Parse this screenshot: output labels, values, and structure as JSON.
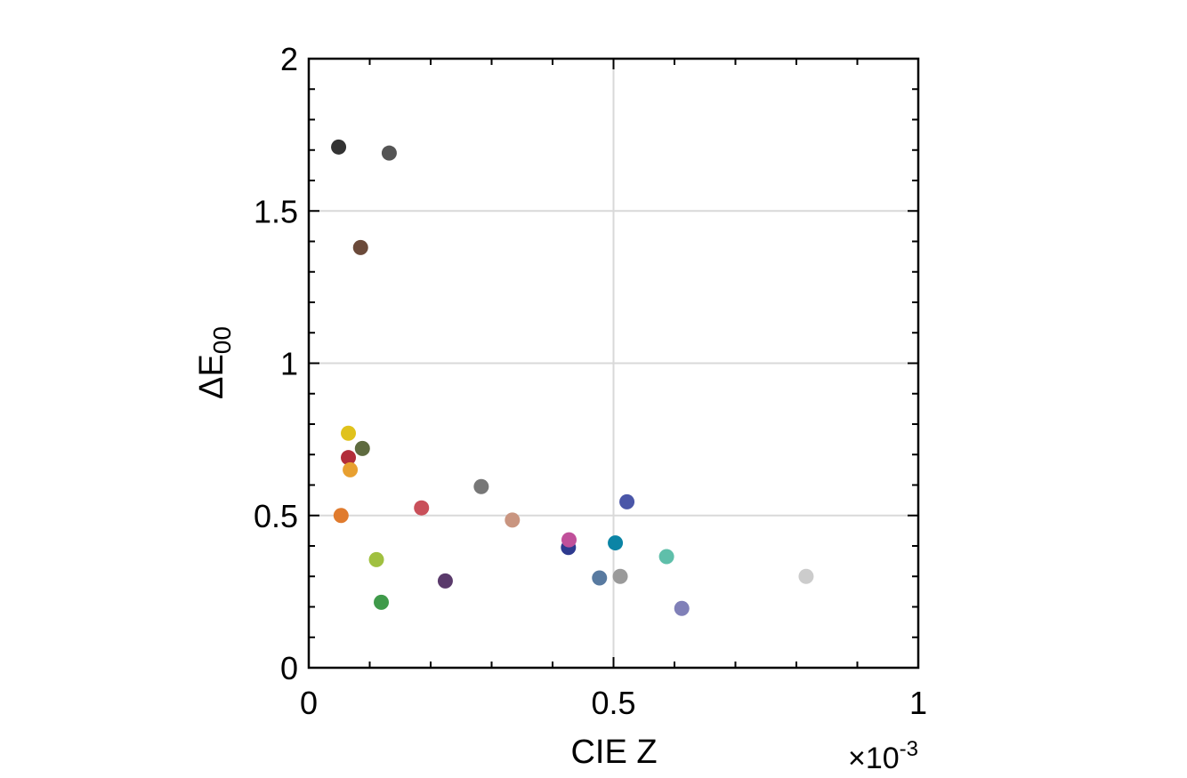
{
  "chart_data": {
    "type": "scatter",
    "xlabel": "CIE Z",
    "ylabel": "ΔE",
    "ylabel_subscript": "00",
    "x_multiplier": "×10",
    "x_multiplier_exponent": "-3",
    "xlim": [
      0,
      1
    ],
    "ylim": [
      0,
      2
    ],
    "x_ticks": [
      0,
      0.5,
      1
    ],
    "x_tick_labels": [
      "0",
      "0.5",
      "1"
    ],
    "y_ticks": [
      0,
      0.5,
      1,
      1.5,
      2
    ],
    "y_tick_labels": [
      "0",
      "0.5",
      "1",
      "1.5",
      "2"
    ],
    "grid": true,
    "legend": "none",
    "points": [
      {
        "x": 0.049,
        "y": 1.71,
        "color": "#333333"
      },
      {
        "x": 0.132,
        "y": 1.69,
        "color": "#555555"
      },
      {
        "x": 0.085,
        "y": 1.38,
        "color": "#6b4a3a"
      },
      {
        "x": 0.065,
        "y": 0.77,
        "color": "#e0c21c"
      },
      {
        "x": 0.088,
        "y": 0.72,
        "color": "#5e6b3f"
      },
      {
        "x": 0.065,
        "y": 0.69,
        "color": "#b22d3a"
      },
      {
        "x": 0.068,
        "y": 0.65,
        "color": "#e8a030"
      },
      {
        "x": 0.053,
        "y": 0.5,
        "color": "#e07b2e"
      },
      {
        "x": 0.111,
        "y": 0.355,
        "color": "#a0c040"
      },
      {
        "x": 0.119,
        "y": 0.215,
        "color": "#3f9a4a"
      },
      {
        "x": 0.185,
        "y": 0.525,
        "color": "#c9505a"
      },
      {
        "x": 0.224,
        "y": 0.285,
        "color": "#5a3a6b"
      },
      {
        "x": 0.283,
        "y": 0.595,
        "color": "#777777"
      },
      {
        "x": 0.334,
        "y": 0.485,
        "color": "#c99580"
      },
      {
        "x": 0.426,
        "y": 0.395,
        "color": "#2e3a8f"
      },
      {
        "x": 0.427,
        "y": 0.42,
        "color": "#c0509a"
      },
      {
        "x": 0.477,
        "y": 0.295,
        "color": "#587aa0"
      },
      {
        "x": 0.503,
        "y": 0.41,
        "color": "#0b84a5"
      },
      {
        "x": 0.511,
        "y": 0.3,
        "color": "#9a9a9a"
      },
      {
        "x": 0.522,
        "y": 0.545,
        "color": "#4a56a8"
      },
      {
        "x": 0.587,
        "y": 0.365,
        "color": "#5fbfaa"
      },
      {
        "x": 0.612,
        "y": 0.195,
        "color": "#8080b8"
      },
      {
        "x": 0.816,
        "y": 0.3,
        "color": "#cccccc"
      }
    ]
  }
}
